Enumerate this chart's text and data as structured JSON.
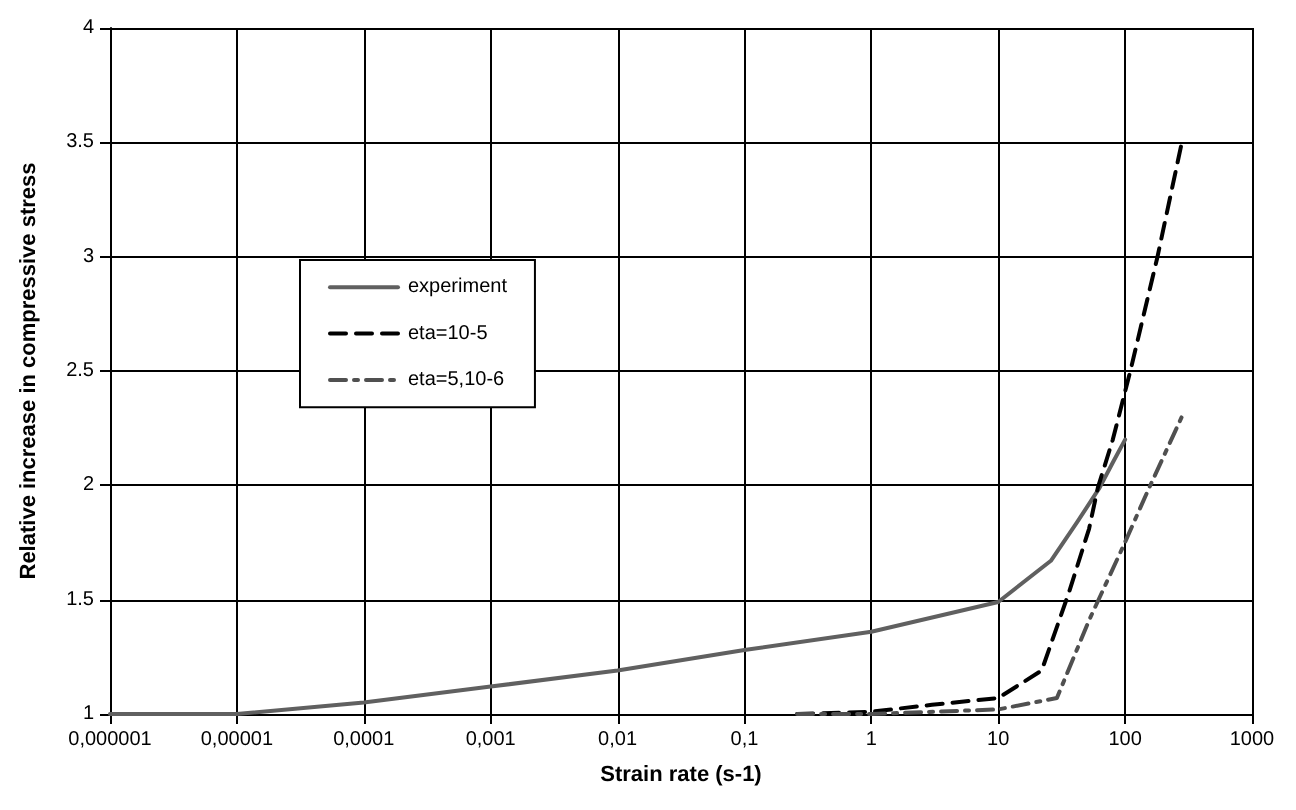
{
  "chart_data": {
    "type": "line",
    "xlabel": "Strain rate (s-1)",
    "ylabel": "Relative increase in compressive stress",
    "log": "x",
    "grid": true,
    "legend": "center",
    "marker": "none",
    "xlim": [
      1e-06,
      1000
    ],
    "xticks": [
      {
        "value": 1e-06,
        "label": "0,000001"
      },
      {
        "value": 1e-05,
        "label": "0,00001"
      },
      {
        "value": 0.0001,
        "label": "0,0001"
      },
      {
        "value": 0.001,
        "label": "0,001"
      },
      {
        "value": 0.01,
        "label": "0,01"
      },
      {
        "value": 0.1,
        "label": "0,1"
      },
      1,
      10,
      100,
      1000
    ],
    "ylim": [
      1,
      4
    ],
    "yticks": [
      1,
      1.5,
      2,
      2.5,
      3,
      3.5,
      4
    ],
    "series": [
      {
        "name": "experiment",
        "color": "#606060",
        "line_style": "solid",
        "x": [
          1e-06,
          3e-06,
          1e-05,
          0.0001,
          0.001,
          0.01,
          0.1,
          1,
          10,
          26,
          42,
          63,
          80,
          100
        ],
        "values": [
          1.0,
          1.0,
          1.0,
          1.05,
          1.12,
          1.19,
          1.28,
          1.36,
          1.49,
          1.67,
          1.84,
          1.99,
          2.1,
          2.2
        ]
      },
      {
        "name": "eta=10-5",
        "color": "#000000",
        "line_style": "dashed",
        "x": [
          0.26,
          1,
          3,
          10,
          22,
          36,
          52,
          61,
          80,
          110,
          180,
          280
        ],
        "values": [
          1.0,
          1.01,
          1.04,
          1.07,
          1.19,
          1.53,
          1.81,
          1.99,
          2.2,
          2.5,
          3.0,
          3.5
        ]
      },
      {
        "name": "eta=5,10-6",
        "color": "#505050",
        "line_style": "dashdot",
        "x": [
          0.26,
          1,
          10,
          29,
          52,
          96,
          155,
          280
        ],
        "values": [
          1.0,
          1.0,
          1.02,
          1.07,
          1.41,
          1.73,
          1.99,
          2.3
        ]
      }
    ]
  }
}
